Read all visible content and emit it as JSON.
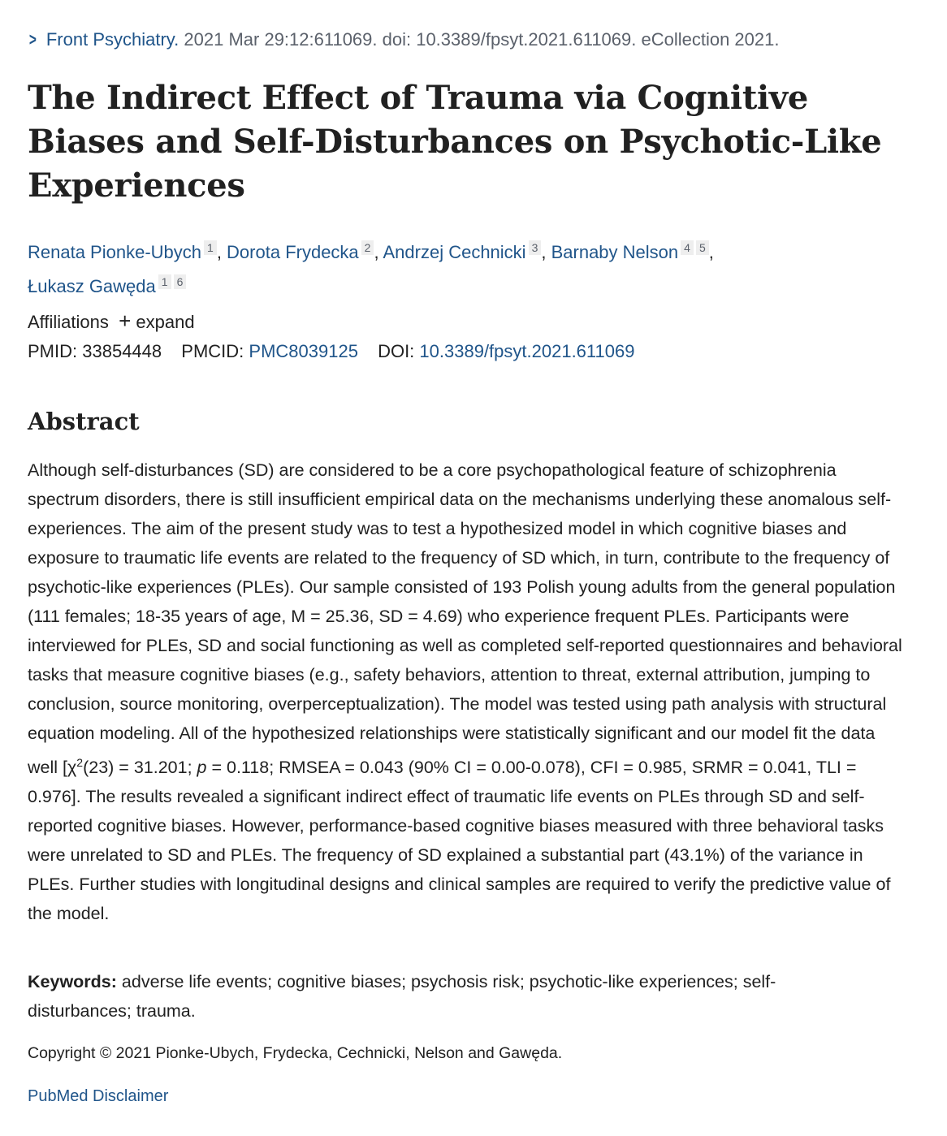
{
  "citation": {
    "journal": "Front Psychiatry.",
    "details": "2021 Mar 29:12:611069. doi: 10.3389/fpsyt.2021.611069. eCollection 2021."
  },
  "title": "The Indirect Effect of Trauma via Cognitive Biases and Self-Disturbances on Psychotic-Like Experiences",
  "authors": [
    {
      "name": "Renata Pionke-Ubych",
      "affs": [
        "1"
      ]
    },
    {
      "name": "Dorota Frydecka",
      "affs": [
        "2"
      ]
    },
    {
      "name": "Andrzej Cechnicki",
      "affs": [
        "3"
      ]
    },
    {
      "name": "Barnaby Nelson",
      "affs": [
        "4",
        "5"
      ]
    },
    {
      "name": "Łukasz Gawęda",
      "affs": [
        "1",
        "6"
      ]
    }
  ],
  "affiliations": {
    "label": "Affiliations",
    "expand": "expand"
  },
  "ids": {
    "pmid_label": "PMID:",
    "pmid": "33854448",
    "pmcid_label": "PMCID:",
    "pmcid": "PMC8039125",
    "doi_label": "DOI:",
    "doi": "10.3389/fpsyt.2021.611069"
  },
  "abstract": {
    "heading": "Abstract",
    "text_1": "Although self-disturbances (SD) are considered to be a core psychopathological feature of schizophrenia spectrum disorders, there is still insufficient empirical data on the mechanisms underlying these anomalous self-experiences. The aim of the present study was to test a hypothesized model in which cognitive biases and exposure to traumatic life events are related to the frequency of SD which, in turn, contribute to the frequency of psychotic-like experiences (PLEs). Our sample consisted of 193 Polish young adults from the general population (111 females; 18-35 years of age, M = 25.36, SD = 4.69) who experience frequent PLEs. Participants were interviewed for PLEs, SD and social functioning as well as completed self-reported questionnaires and behavioral tasks that measure cognitive biases (e.g., safety behaviors, attention to threat, external attribution, jumping to conclusion, source monitoring, overperceptualization). The model was tested using path analysis with structural equation modeling. All of the hypothesized relationships were statistically significant and our model fit the data well [χ",
    "sup": "2",
    "text_2": "(23) = 31.201; ",
    "italic": "p",
    "text_3": " = 0.118; RMSEA = 0.043 (90% CI = 0.00-0.078), CFI = 0.985, SRMR = 0.041, TLI = 0.976]. The results revealed a significant indirect effect of traumatic life events on PLEs through SD and self-reported cognitive biases. However, performance-based cognitive biases measured with three behavioral tasks were unrelated to SD and PLEs. The frequency of SD explained a substantial part (43.1%) of the variance in PLEs. Further studies with longitudinal designs and clinical samples are required to verify the predictive value of the model."
  },
  "keywords": {
    "label": "Keywords:",
    "text": "adverse life events; cognitive biases; psychosis risk; psychotic-like experiences; self-disturbances; trauma."
  },
  "copyright": "Copyright © 2021 Pionke-Ubych, Frydecka, Cechnicki, Nelson and Gawęda.",
  "disclaimer": "PubMed Disclaimer"
}
